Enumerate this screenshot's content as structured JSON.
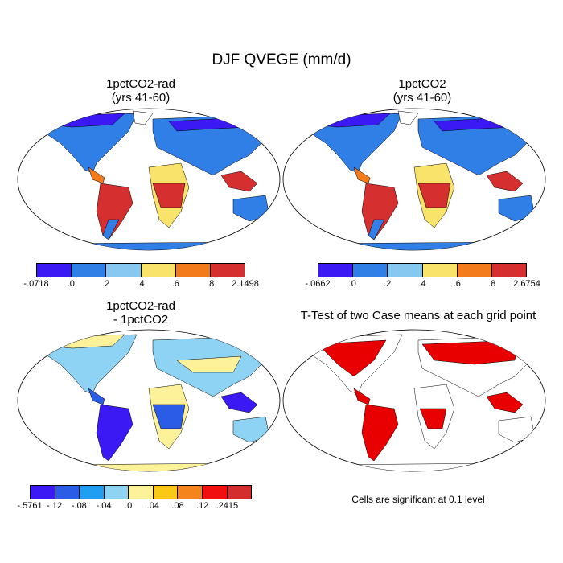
{
  "title": "DJF QVEGE (mm/d)",
  "panels": [
    {
      "id": "p1",
      "title_line1": "1pctCO2-rad",
      "title_line2": "(yrs 41-60)",
      "colorbar": {
        "colors": [
          "#3b19f5",
          "#2f7fe6",
          "#86c8ef",
          "#f9e36b",
          "#f47b1b",
          "#d62f2f"
        ],
        "labels": [
          "-.0718",
          ".0",
          ".2",
          ".4",
          ".6",
          ".8",
          "2.1498"
        ]
      }
    },
    {
      "id": "p2",
      "title_line1": "1pctCO2",
      "title_line2": "(yrs 41-60)",
      "colorbar": {
        "colors": [
          "#3b19f5",
          "#2f7fe6",
          "#86c8ef",
          "#f9e36b",
          "#f47b1b",
          "#d62f2f"
        ],
        "labels": [
          "-.0662",
          ".0",
          ".2",
          ".4",
          ".6",
          ".8",
          "2.6754"
        ]
      }
    },
    {
      "id": "p3",
      "title_line1": "1pctCO2-rad",
      "title_line2": "- 1pctCO2",
      "colorbar": {
        "colors": [
          "#3b19f5",
          "#2a5ce8",
          "#1f9ef2",
          "#8fd3f4",
          "#fdf29a",
          "#f9c915",
          "#f5841c",
          "#f20f0f",
          "#d42d2d"
        ],
        "labels": [
          "-.5761",
          "-.12",
          "-.08",
          "-.04",
          ".0",
          ".04",
          ".08",
          ".12",
          ".2415"
        ]
      }
    },
    {
      "id": "p4",
      "title_line1": "T-Test of two Case means at each grid point",
      "title_line2": "",
      "note": "Cells are significant at 0.1 level"
    }
  ],
  "colors": {
    "significant": "#e80000",
    "coastline": "#000000"
  }
}
